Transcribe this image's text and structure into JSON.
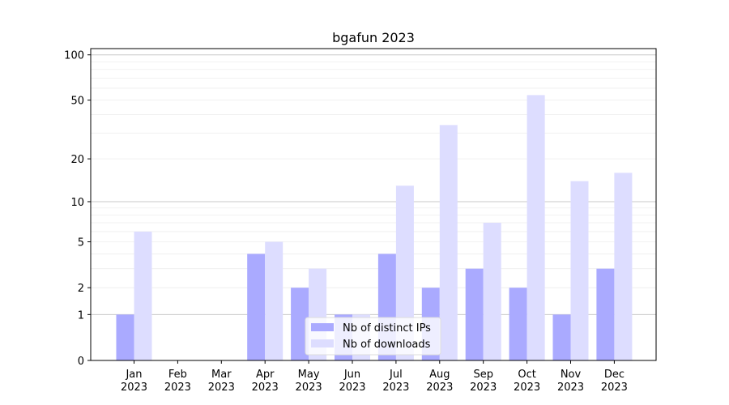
{
  "chart_data": {
    "type": "bar",
    "title": "bgafun 2023",
    "xlabel": "",
    "ylabel": "",
    "yscale": "log(1+y)",
    "ylim": [
      0,
      110
    ],
    "grid": "horizontal",
    "legend_position": "bottom-center",
    "categories": [
      "Jan\n2023",
      "Feb\n2023",
      "Mar\n2023",
      "Apr\n2023",
      "May\n2023",
      "Jun\n2023",
      "Jul\n2023",
      "Aug\n2023",
      "Sep\n2023",
      "Oct\n2023",
      "Nov\n2023",
      "Dec\n2023"
    ],
    "y_ticks": [
      0,
      1,
      2,
      5,
      10,
      20,
      50,
      100
    ],
    "series": [
      {
        "name": "Nb of distinct IPs",
        "color": "#aaaaff",
        "values": [
          1,
          0,
          0,
          4,
          2,
          1,
          4,
          2,
          3,
          2,
          1,
          3
        ]
      },
      {
        "name": "Nb of downloads",
        "color": "#ddddff",
        "values": [
          6,
          0,
          0,
          5,
          3,
          1,
          13,
          34,
          7,
          54,
          14,
          16
        ]
      }
    ]
  }
}
